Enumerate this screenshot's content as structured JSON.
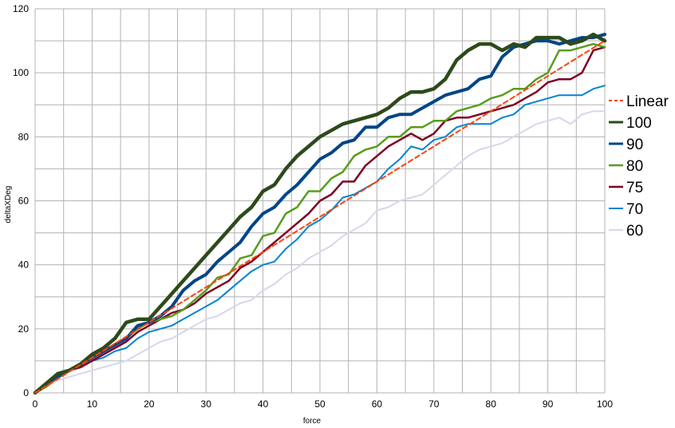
{
  "chart_data": {
    "type": "line",
    "title": "",
    "xlabel": "force",
    "ylabel": "deltaXDeg",
    "xlim": [
      0,
      100
    ],
    "ylim": [
      0,
      120
    ],
    "x_ticks": [
      0,
      10,
      20,
      30,
      40,
      50,
      60,
      70,
      80,
      90,
      100
    ],
    "y_ticks": [
      0,
      20,
      40,
      60,
      80,
      100,
      120
    ],
    "grid": true,
    "legend_position": "right",
    "legend_order": [
      "Linear",
      "100",
      "90",
      "80",
      "75",
      "70",
      "60"
    ],
    "x": [
      0,
      2,
      4,
      6,
      8,
      10,
      12,
      14,
      16,
      18,
      20,
      22,
      24,
      26,
      28,
      30,
      32,
      34,
      36,
      38,
      40,
      42,
      44,
      46,
      48,
      50,
      52,
      54,
      56,
      58,
      60,
      62,
      64,
      66,
      68,
      70,
      72,
      74,
      76,
      78,
      80,
      82,
      84,
      86,
      88,
      90,
      92,
      94,
      96,
      98,
      100
    ],
    "series": [
      {
        "name": "100",
        "color": "#2d4a1a",
        "width": 4.5,
        "values": [
          0,
          3,
          6,
          7,
          9,
          12,
          14,
          17,
          22,
          23,
          23,
          27,
          31,
          35,
          39,
          43,
          47,
          51,
          55,
          58,
          63,
          65,
          70,
          74,
          77,
          80,
          82,
          84,
          85,
          86,
          87,
          89,
          92,
          94,
          94,
          95,
          98,
          104,
          107,
          109,
          109,
          107,
          109,
          108,
          111,
          111,
          111,
          109,
          110,
          112,
          110
        ]
      },
      {
        "name": "90",
        "color": "#004586",
        "width": 4,
        "values": [
          0,
          3,
          5,
          7,
          9,
          11,
          13,
          15,
          17,
          21,
          22,
          24,
          27,
          32,
          35,
          37,
          41,
          44,
          47,
          52,
          56,
          58,
          62,
          65,
          69,
          73,
          75,
          78,
          79,
          83,
          83,
          86,
          87,
          87,
          89,
          91,
          93,
          94,
          95,
          98,
          99,
          105,
          108,
          109,
          110,
          110,
          109,
          110,
          111,
          111,
          112
        ]
      },
      {
        "name": "80",
        "color": "#579d1c",
        "width": 2.5,
        "values": [
          0,
          2,
          5,
          7,
          9,
          11,
          13,
          15,
          17,
          20,
          22,
          23,
          24,
          26,
          29,
          32,
          36,
          37,
          42,
          43,
          49,
          50,
          56,
          58,
          63,
          63,
          67,
          69,
          74,
          76,
          77,
          80,
          80,
          83,
          83,
          85,
          85,
          88,
          89,
          90,
          92,
          93,
          95,
          95,
          98,
          100,
          107,
          107,
          108,
          109,
          108
        ]
      },
      {
        "name": "75",
        "color": "#7e0021",
        "width": 2.5,
        "values": [
          0,
          2,
          5,
          7,
          8,
          10,
          12,
          14,
          16,
          19,
          21,
          23,
          25,
          26,
          28,
          31,
          33,
          35,
          39,
          41,
          44,
          47,
          50,
          53,
          56,
          60,
          62,
          66,
          66,
          71,
          74,
          77,
          79,
          81,
          79,
          81,
          85,
          86,
          86,
          87,
          88,
          89,
          90,
          92,
          94,
          97,
          98,
          98,
          100,
          107,
          108
        ]
      },
      {
        "name": "70",
        "color": "#0084d1",
        "width": 2,
        "values": [
          0,
          2,
          5,
          7,
          8,
          10,
          11,
          13,
          14,
          17,
          19,
          20,
          21,
          23,
          25,
          27,
          29,
          32,
          35,
          38,
          40,
          41,
          45,
          48,
          52,
          54,
          57,
          61,
          62,
          64,
          66,
          70,
          73,
          77,
          76,
          79,
          80,
          83,
          84,
          84,
          84,
          86,
          87,
          90,
          91,
          92,
          93,
          93,
          93,
          95,
          96
        ]
      },
      {
        "name": "60",
        "color": "#d4d8ea",
        "width": 2,
        "values": [
          0,
          2,
          4,
          5,
          6,
          7,
          8,
          9,
          10,
          12,
          14,
          16,
          17,
          19,
          21,
          23,
          24,
          26,
          28,
          29,
          32,
          34,
          37,
          39,
          42,
          44,
          46,
          49,
          51,
          53,
          57,
          58,
          60,
          61,
          62,
          65,
          68,
          71,
          74,
          76,
          77,
          78,
          80,
          82,
          84,
          85,
          86,
          84,
          87,
          88,
          88
        ]
      },
      {
        "name": "Linear",
        "color": "#ff420e",
        "width": 2,
        "dashed": true,
        "values": [
          0,
          2.2,
          4.4,
          6.6,
          8.8,
          11,
          13.2,
          15.4,
          17.6,
          19.8,
          22,
          24.2,
          26.4,
          28.6,
          30.8,
          33,
          35.2,
          37.4,
          39.6,
          41.8,
          44,
          46.2,
          48.4,
          50.6,
          52.8,
          55,
          57.2,
          59.4,
          61.6,
          63.8,
          66,
          68.2,
          70.4,
          72.6,
          74.8,
          77,
          79.2,
          81.4,
          83.6,
          85.8,
          88,
          90.2,
          92.4,
          94.6,
          96.8,
          99,
          101.2,
          103.4,
          105.6,
          107.8,
          110
        ]
      }
    ]
  }
}
